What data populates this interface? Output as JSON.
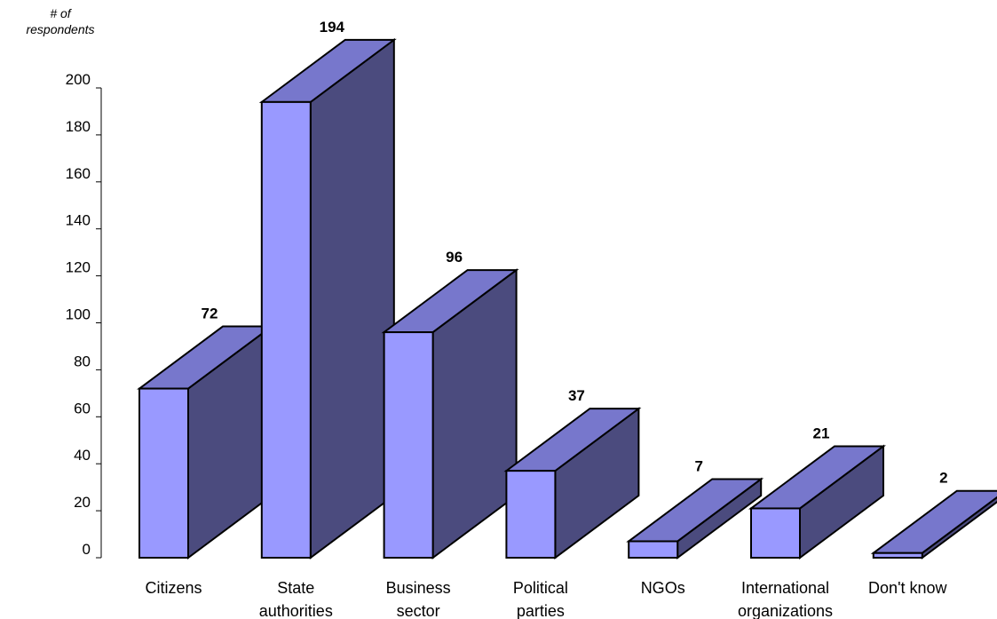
{
  "chart_data": {
    "type": "bar",
    "title": "",
    "xlabel": "",
    "ylabel_lines": [
      "# of",
      "respondents"
    ],
    "ylim": [
      0,
      200
    ],
    "yticks": [
      0,
      20,
      40,
      60,
      80,
      100,
      120,
      140,
      160,
      180,
      200
    ],
    "categories": [
      [
        "Citizens"
      ],
      [
        "State",
        "authorities"
      ],
      [
        "Business",
        "sector"
      ],
      [
        "Political",
        "parties"
      ],
      [
        "NGOs"
      ],
      [
        "International",
        "organizations"
      ],
      [
        "Don't know"
      ]
    ],
    "values": [
      72,
      194,
      96,
      37,
      7,
      21,
      2
    ],
    "style": "3d-column",
    "grid": false,
    "legend": "none"
  },
  "colors": {
    "front": "#9999FF",
    "top": "#7777CC",
    "side": "#4B4B7E"
  }
}
